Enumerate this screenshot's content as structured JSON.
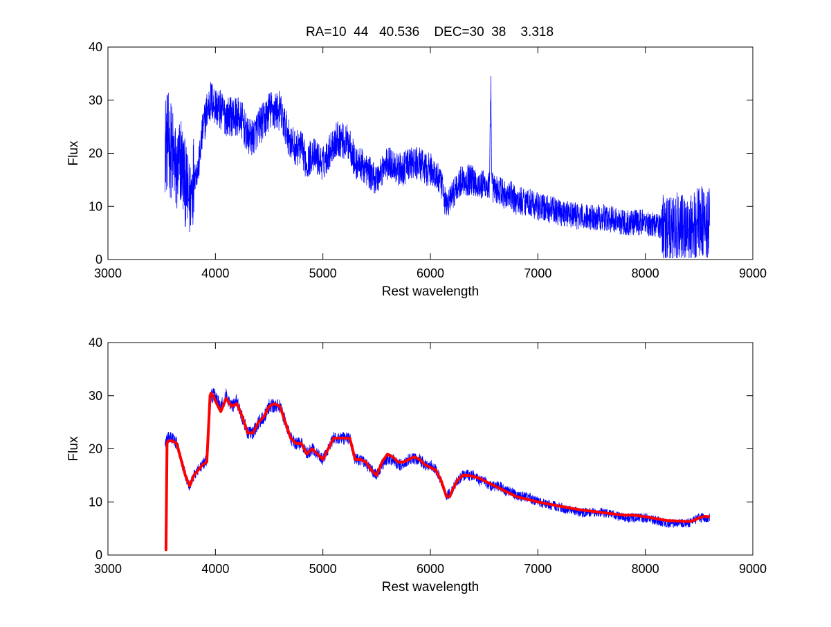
{
  "figure": {
    "title": "RA=10  44   40.536    DEC=30  38    3.318"
  },
  "chart_data": [
    {
      "type": "line",
      "title": "RA=10  44   40.536    DEC=30  38    3.318",
      "xlabel": "Rest wavelength",
      "ylabel": "Flux",
      "xlim": [
        3000,
        9000
      ],
      "ylim": [
        0,
        40
      ],
      "xticks": [
        3000,
        4000,
        5000,
        6000,
        7000,
        8000,
        9000
      ],
      "yticks": [
        0,
        10,
        20,
        30,
        40
      ],
      "grid": false,
      "series": [
        {
          "color": "#0000ff",
          "x": [
            3530,
            3560,
            3600,
            3640,
            3680,
            3720,
            3760,
            3800,
            3840,
            3880,
            3920,
            3960,
            4000,
            4050,
            4100,
            4150,
            4200,
            4250,
            4300,
            4350,
            4400,
            4450,
            4500,
            4550,
            4600,
            4650,
            4700,
            4750,
            4800,
            4850,
            4900,
            4950,
            5000,
            5050,
            5100,
            5150,
            5200,
            5250,
            5300,
            5350,
            5400,
            5450,
            5500,
            5550,
            5600,
            5650,
            5700,
            5750,
            5800,
            5850,
            5900,
            5950,
            6000,
            6050,
            6100,
            6150,
            6200,
            6250,
            6300,
            6350,
            6400,
            6450,
            6500,
            6550,
            6563,
            6570,
            6600,
            6650,
            6700,
            6750,
            6800,
            6900,
            7000,
            7200,
            7400,
            7600,
            7800,
            8000,
            8200,
            8300,
            8400,
            8500,
            8600
          ],
          "y": [
            22,
            22,
            20,
            16,
            19,
            14,
            11,
            16,
            17,
            24,
            28,
            30,
            29,
            28,
            27,
            27,
            27,
            26,
            23,
            23,
            25,
            26,
            28,
            28,
            28,
            25,
            22,
            21,
            21,
            18,
            20,
            19,
            18,
            20,
            22,
            23,
            22,
            22,
            18,
            18,
            17,
            16,
            15,
            17,
            18,
            18,
            17,
            17,
            18,
            18,
            18,
            17,
            17,
            16,
            14,
            10,
            12,
            14,
            15,
            15,
            15,
            14,
            14,
            14,
            33,
            14,
            13,
            13,
            12,
            12,
            11,
            11,
            10,
            9,
            8,
            8,
            7,
            7,
            6,
            6,
            6,
            7,
            7
          ]
        }
      ]
    },
    {
      "type": "line",
      "title": "",
      "xlabel": "Rest wavelength",
      "ylabel": "Flux",
      "xlim": [
        3000,
        9000
      ],
      "ylim": [
        0,
        40
      ],
      "xticks": [
        3000,
        4000,
        5000,
        6000,
        7000,
        8000,
        9000
      ],
      "yticks": [
        0,
        10,
        20,
        30,
        40
      ],
      "grid": false,
      "series": [
        {
          "color": "#0000ff",
          "x": [
            3530,
            3560,
            3600,
            3640,
            3680,
            3720,
            3760,
            3800,
            3840,
            3880,
            3920,
            3960,
            4000,
            4050,
            4100,
            4150,
            4200,
            4250,
            4300,
            4350,
            4400,
            4450,
            4500,
            4550,
            4600,
            4650,
            4700,
            4750,
            4800,
            4850,
            4900,
            4950,
            5000,
            5050,
            5100,
            5150,
            5200,
            5250,
            5300,
            5350,
            5400,
            5450,
            5500,
            5550,
            5600,
            5650,
            5700,
            5750,
            5800,
            5850,
            5900,
            5950,
            6000,
            6050,
            6100,
            6150,
            6200,
            6250,
            6300,
            6350,
            6400,
            6450,
            6500,
            6550,
            6600,
            6650,
            6700,
            6750,
            6800,
            6900,
            7000,
            7200,
            7400,
            7600,
            7800,
            8000,
            8200,
            8400,
            8500,
            8600
          ],
          "y": [
            21,
            22,
            22,
            21,
            18,
            15,
            13,
            15,
            16,
            17,
            18,
            30,
            30,
            28,
            30,
            28,
            29,
            26,
            23,
            23,
            25,
            26,
            28,
            28,
            28,
            25,
            22,
            21,
            21,
            19,
            20,
            19,
            18,
            20,
            22,
            22,
            22,
            22,
            18,
            18,
            17,
            16,
            15,
            17,
            18,
            18,
            17,
            17,
            18,
            18,
            18,
            17,
            17,
            16,
            14,
            11,
            12,
            14,
            15,
            15,
            15,
            14,
            14,
            13,
            13,
            13,
            12,
            12,
            11,
            11,
            10,
            9,
            8,
            8,
            7,
            7,
            6,
            6,
            7,
            7
          ]
        },
        {
          "color": "#ff0000",
          "x": [
            3530,
            3540,
            3550,
            3560,
            3600,
            3640,
            3680,
            3720,
            3760,
            3800,
            3840,
            3880,
            3920,
            3950,
            3960,
            3980,
            4000,
            4050,
            4100,
            4150,
            4200,
            4250,
            4300,
            4350,
            4400,
            4450,
            4500,
            4550,
            4600,
            4650,
            4700,
            4750,
            4800,
            4850,
            4900,
            4950,
            5000,
            5050,
            5100,
            5150,
            5200,
            5250,
            5300,
            5350,
            5400,
            5450,
            5500,
            5550,
            5600,
            5650,
            5700,
            5750,
            5800,
            5850,
            5900,
            5950,
            6000,
            6050,
            6100,
            6150,
            6180,
            6200,
            6250,
            6300,
            6350,
            6400,
            6450,
            6500,
            6550,
            6600,
            6650,
            6700,
            6750,
            6800,
            6900,
            7000,
            7200,
            7400,
            7600,
            7800,
            7900,
            8000,
            8200,
            8400,
            8450,
            8500,
            8550,
            8600
          ],
          "y": [
            1,
            1,
            21,
            21.5,
            21.5,
            21,
            18,
            15,
            13,
            15,
            16,
            17,
            17.5,
            30,
            30.5,
            30,
            29,
            27,
            29.5,
            28,
            28.5,
            26,
            23,
            23,
            25,
            26,
            28,
            28.5,
            28,
            25,
            22,
            21,
            21,
            19,
            20,
            19,
            18,
            20,
            22,
            22,
            22,
            22,
            18,
            18,
            17.5,
            16,
            15,
            17.5,
            19,
            18.5,
            17.5,
            17.5,
            18,
            18.5,
            18,
            17,
            16.5,
            16,
            14,
            11,
            11,
            12,
            14,
            15,
            15,
            14.8,
            14.5,
            14,
            13.5,
            13,
            12.5,
            12,
            11.5,
            11,
            10.5,
            10,
            9.2,
            8.5,
            8,
            7.5,
            7.5,
            7.2,
            6.5,
            6.3,
            6.5,
            7,
            7.3,
            7.2
          ]
        }
      ]
    }
  ]
}
